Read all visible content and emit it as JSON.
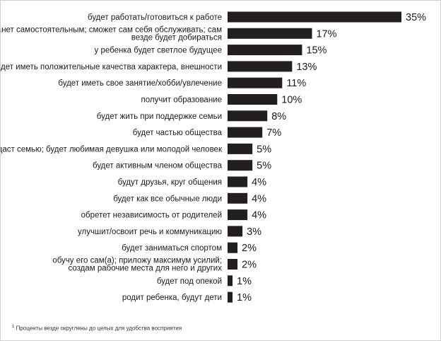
{
  "chart_data": {
    "type": "bar",
    "orientation": "horizontal",
    "categories": [
      [
        "будет работать/готовиться к работе"
      ],
      [
        "станет самостоятельным; сможет сам себя обслуживать; сам",
        "везде будет добираться"
      ],
      [
        "у ребенка будет светлое будущее"
      ],
      [
        "будет иметь положительные качества характера, внешности"
      ],
      [
        "будет иметь свое занятие/хобби/увлечение"
      ],
      [
        "получит образование"
      ],
      [
        "будет жить при поддержке семьи"
      ],
      [
        "будет частью общества"
      ],
      [
        "создаст семью; будет любимая девушка или молодой человек"
      ],
      [
        "будет активным членом общества"
      ],
      [
        "будут друзья, круг общения"
      ],
      [
        "будет как все обычные люди"
      ],
      [
        "обретет независимость от родителей"
      ],
      [
        "улучшит/освоит речь и коммуникацию"
      ],
      [
        "будет заниматься спортом"
      ],
      [
        "обучу его сам(а); приложу максимум усилий;",
        "создам рабочие места для него и других"
      ],
      [
        "будет под опекой"
      ],
      [
        "родит ребенка, будут дети"
      ]
    ],
    "values": [
      35,
      17,
      15,
      13,
      11,
      10,
      8,
      7,
      5,
      5,
      4,
      4,
      4,
      3,
      2,
      2,
      1,
      1
    ],
    "value_labels": [
      "35%",
      "17%",
      "15%",
      "13%",
      "11%",
      "10%",
      "8%",
      "7%",
      "5%",
      "5%",
      "4%",
      "4%",
      "4%",
      "3%",
      "2%",
      "2%",
      "1%",
      "1%"
    ],
    "xlim": [
      0,
      35
    ],
    "bar_color": "#231f20",
    "grid": false,
    "axes_visible": false
  },
  "footnote": {
    "marker": "1",
    "text": " Проценты везде округлены до целых для удобства восприятия"
  }
}
